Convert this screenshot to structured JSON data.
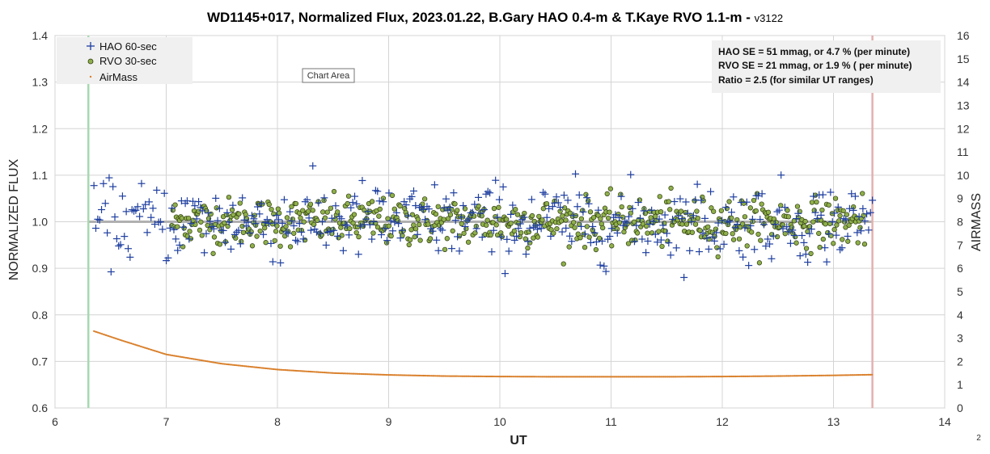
{
  "chart_data": {
    "type": "scatter",
    "title": "WD1145+017, Normalized Flux, 2023.01.22, B.Gary HAO 0.4-m & T.Kaye RVO 1.1-m",
    "version": "v3122",
    "title_separator": " - ",
    "xlabel": "UT",
    "ylabel": "NORMALIZED FLUX",
    "y2label": "AIRMASS",
    "xlim": [
      6,
      14
    ],
    "ylim": [
      0.6,
      1.4
    ],
    "y2lim": [
      0,
      16
    ],
    "x_ticks": [
      "6",
      "7",
      "8",
      "9",
      "10",
      "11",
      "12",
      "13",
      "14"
    ],
    "y_ticks": [
      "0.6",
      "0.7",
      "0.8",
      "0.9",
      "1.0",
      "1.1",
      "1.2",
      "1.3",
      "1.4"
    ],
    "y2_ticks": [
      "0",
      "1",
      "2",
      "3",
      "4",
      "5",
      "6",
      "7",
      "8",
      "9",
      "10",
      "11",
      "12",
      "13",
      "14",
      "15",
      "16"
    ],
    "grid": true,
    "legend_position": "top-left",
    "series": [
      {
        "name": "HAO 60-sec",
        "marker": "plus",
        "color": "#1f3fa0",
        "x_range": [
          6.35,
          13.35
        ],
        "mean": 1.0,
        "scatter": 0.047
      },
      {
        "name": "RVO 30-sec",
        "marker": "circle",
        "color": "#7a9a3c",
        "x_range": [
          7.05,
          13.28
        ],
        "mean": 1.0,
        "scatter": 0.019
      },
      {
        "name": "AirMass",
        "marker": "dot",
        "color": "#d97f2a",
        "axis": "right",
        "points": [
          [
            6.35,
            3.3
          ],
          [
            6.6,
            2.9
          ],
          [
            7.0,
            2.3
          ],
          [
            7.5,
            1.9
          ],
          [
            8.0,
            1.65
          ],
          [
            8.5,
            1.5
          ],
          [
            9.0,
            1.42
          ],
          [
            9.5,
            1.37
          ],
          [
            10.0,
            1.35
          ],
          [
            10.5,
            1.34
          ],
          [
            11.0,
            1.34
          ],
          [
            11.5,
            1.34
          ],
          [
            12.0,
            1.35
          ],
          [
            12.5,
            1.37
          ],
          [
            13.0,
            1.4
          ],
          [
            13.35,
            1.43
          ]
        ]
      }
    ],
    "reference_lines": [
      {
        "type": "horizontal",
        "y": 1.0,
        "color": "#b0b0b0"
      },
      {
        "type": "vertical",
        "x": 6.3,
        "color": "#a8d8b0"
      },
      {
        "type": "vertical",
        "x": 13.35,
        "color": "#e3b0b0"
      }
    ],
    "stats_box": [
      "HAO SE =   51 mmag, or 4.7 % (per minute)",
      "RVO SE =   21 mmag, or 1.9 % ( per minute)",
      "Ratio = 2.5 (for similar UT ranges)"
    ]
  },
  "tooltip": "Chart Area",
  "page_number": "2",
  "colors": {
    "hao": "#1f3fa0",
    "rvo_fill": "#8fb04a",
    "rvo_stroke": "#2e3b12",
    "airmass": "#d97f2a",
    "grid": "#d4d4d4"
  }
}
